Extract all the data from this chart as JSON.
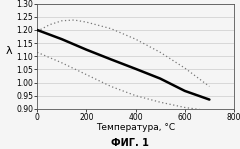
{
  "title": "ФИГ. 1",
  "xlabel": "Температура, °C",
  "ylabel": "λ",
  "xlim": [
    0,
    800
  ],
  "ylim": [
    0.9,
    1.3
  ],
  "yticks": [
    0.9,
    0.95,
    1.0,
    1.05,
    1.1,
    1.15,
    1.2,
    1.25,
    1.3
  ],
  "xticks": [
    0,
    200,
    400,
    600,
    800
  ],
  "solid_line": {
    "x": [
      0,
      100,
      200,
      300,
      400,
      500,
      600,
      700
    ],
    "y": [
      1.2,
      1.165,
      1.125,
      1.088,
      1.052,
      1.015,
      0.968,
      0.935
    ],
    "color": "#000000",
    "linewidth": 1.8,
    "linestyle": "-"
  },
  "upper_dotted": {
    "x": [
      0,
      50,
      100,
      150,
      200,
      300,
      400,
      500,
      600,
      700
    ],
    "y": [
      1.195,
      1.22,
      1.235,
      1.238,
      1.23,
      1.205,
      1.165,
      1.115,
      1.055,
      0.985
    ],
    "color": "#777777",
    "linewidth": 0.9,
    "linestyle": ":"
  },
  "lower_dotted": {
    "x": [
      0,
      100,
      200,
      300,
      400,
      500,
      600,
      700
    ],
    "y": [
      1.115,
      1.075,
      1.03,
      0.985,
      0.95,
      0.925,
      0.905,
      0.892
    ],
    "color": "#777777",
    "linewidth": 0.9,
    "linestyle": ":"
  },
  "background_color": "#f5f5f5",
  "plot_bg_color": "#f5f5f5",
  "grid_color": "#cccccc",
  "tick_fontsize": 5.5,
  "label_fontsize": 6.5,
  "title_fontsize": 7.0
}
